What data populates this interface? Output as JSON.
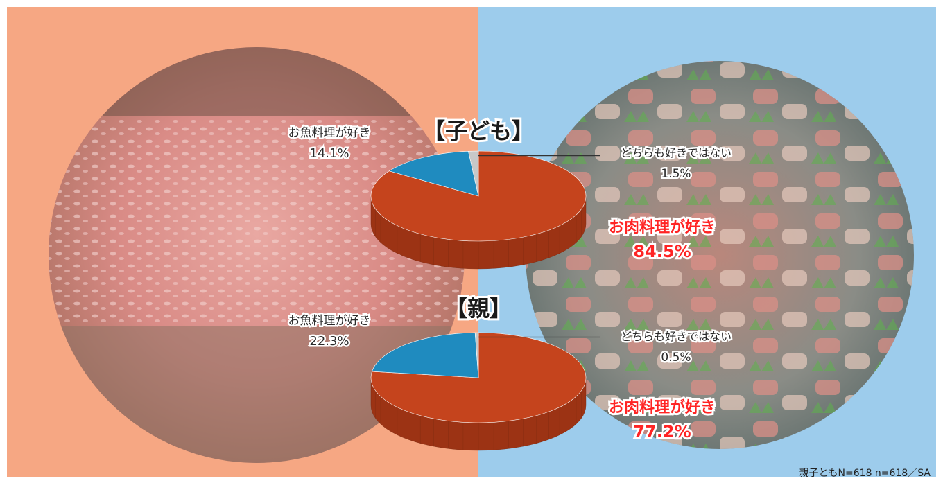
{
  "footnote": "親子ともN=618 n=618／SA",
  "colors": {
    "meat": "#c5441d",
    "meat_side": "#9c3314",
    "fish": "#1f8bbf",
    "fish_side": "#136a93",
    "neither": "#c8c8c8",
    "neither_side": "#9e9e9e",
    "highlight_text": "#ff2424",
    "bg_left": "#f6a783",
    "bg_right": "#9dccec"
  },
  "chart_data": [
    {
      "type": "pie",
      "title": "【子ども】",
      "slices": [
        {
          "label": "お肉料理が好き",
          "value": 84.5,
          "display": "84.5%",
          "color_key": "meat"
        },
        {
          "label": "お魚料理が好き",
          "value": 14.1,
          "display": "14.1%",
          "color_key": "fish"
        },
        {
          "label": "どちらも好きではない",
          "value": 1.5,
          "display": "1.5%",
          "color_key": "neither"
        }
      ]
    },
    {
      "type": "pie",
      "title": "【親】",
      "slices": [
        {
          "label": "お肉料理が好き",
          "value": 77.2,
          "display": "77.2%",
          "color_key": "meat"
        },
        {
          "label": "お魚料理が好き",
          "value": 22.3,
          "display": "22.3%",
          "color_key": "fish"
        },
        {
          "label": "どちらも好きではない",
          "value": 0.5,
          "display": "0.5%",
          "color_key": "neither"
        }
      ]
    }
  ]
}
